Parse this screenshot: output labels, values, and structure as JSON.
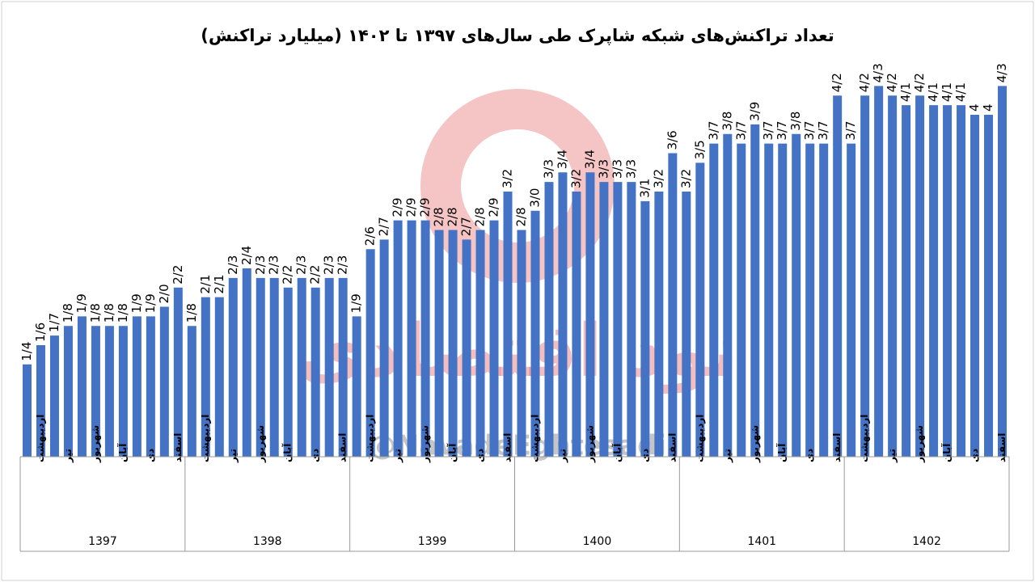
{
  "chart_data": {
    "type": "bar",
    "title": "تعداد تراکنش‌های شبکه شاپرک طی سال‌های ۱۳۹۷ تا ۱۴۰۲ (میلیارد تراکنش)",
    "color": "#4472c4",
    "watermark": [
      "نود اقتصادی",
      "@NavadeEghtesadi"
    ],
    "groups": [
      "1397",
      "1398",
      "1399",
      "1400",
      "1401",
      "1402"
    ],
    "categories": [
      null,
      "اردیبهشت",
      null,
      "تیر",
      null,
      "شهریور",
      null,
      "آبان",
      null,
      "دی",
      null,
      "اسفند",
      null,
      "اردیبهشت",
      null,
      "تیر",
      null,
      "شهریور",
      null,
      "آبان",
      null,
      "دی",
      null,
      "اسفند",
      null,
      "اردیبهشت",
      null,
      "تیر",
      null,
      "شهریور",
      null,
      "آبان",
      null,
      "دی",
      null,
      "اسفند",
      null,
      "اردیبهشت",
      null,
      "تیر",
      null,
      "شهریور",
      null,
      "آبان",
      null,
      "دی",
      null,
      "اسفند",
      null,
      "اردیبهشت",
      null,
      "تیر",
      null,
      "شهریور",
      null,
      "آبان",
      null,
      "دی",
      null,
      "اسفند",
      null,
      "اردیبهشت",
      null,
      "تیر",
      null,
      "شهریور",
      null,
      "آبان",
      null,
      "دی",
      null,
      "اسفند"
    ],
    "values": [
      1.4,
      1.6,
      1.7,
      1.8,
      1.9,
      1.8,
      1.8,
      1.8,
      1.9,
      1.9,
      2.0,
      2.2,
      1.8,
      2.1,
      2.1,
      2.3,
      2.4,
      2.3,
      2.3,
      2.2,
      2.3,
      2.2,
      2.3,
      2.3,
      1.9,
      2.6,
      2.7,
      2.9,
      2.9,
      2.9,
      2.8,
      2.8,
      2.7,
      2.8,
      2.9,
      3.2,
      2.8,
      3.0,
      3.3,
      3.4,
      3.2,
      3.4,
      3.3,
      3.3,
      3.3,
      3.1,
      3.2,
      3.6,
      3.2,
      3.5,
      3.7,
      3.8,
      3.7,
      3.9,
      3.7,
      3.7,
      3.8,
      3.7,
      3.7,
      4.2,
      3.7,
      4.2,
      4.3,
      4.2,
      4.1,
      4.2,
      4.1,
      4.1,
      4.1,
      4,
      4,
      4.3
    ],
    "value_labels": [
      "1/4",
      "1/6",
      "1/7",
      "1/8",
      "1/9",
      "1/8",
      "1/8",
      "1/8",
      "1/9",
      "1/9",
      "2/0",
      "2/2",
      "1/8",
      "2/1",
      "2/1",
      "2/3",
      "2/4",
      "2/3",
      "2/3",
      "2/2",
      "2/3",
      "2/2",
      "2/3",
      "2/3",
      "1/9",
      "2/6",
      "2/7",
      "2/9",
      "2/9",
      "2/9",
      "2/8",
      "2/8",
      "2/7",
      "2/8",
      "2/9",
      "3/2",
      "2/8",
      "3/0",
      "3/3",
      "3/4",
      "3/2",
      "3/4",
      "3/3",
      "3/3",
      "3/3",
      "3/1",
      "3/2",
      "3/6",
      "3/2",
      "3/5",
      "3/7",
      "3/8",
      "3/7",
      "3/9",
      "3/7",
      "3/7",
      "3/8",
      "3/7",
      "3/7",
      "4/2",
      "3/7",
      "4/2",
      "4/3",
      "4/2",
      "4/1",
      "4/2",
      "4/1",
      "4/1",
      "4/1",
      "4",
      "4",
      "4/3"
    ]
  }
}
